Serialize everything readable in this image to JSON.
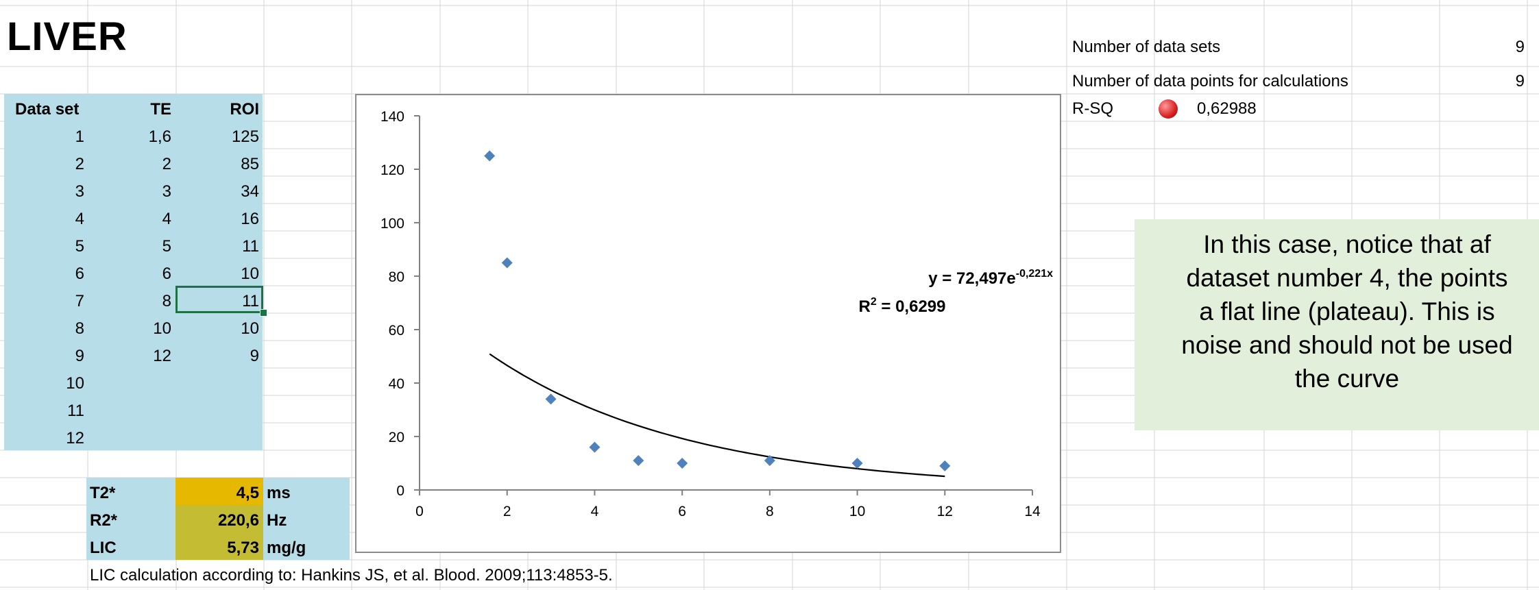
{
  "sheet": {
    "title": "LIVER"
  },
  "table": {
    "headers": {
      "set": "Data set",
      "te": "TE",
      "roi": "ROI"
    },
    "rows": [
      {
        "set": "1",
        "te": "1,6",
        "roi": "125"
      },
      {
        "set": "2",
        "te": "2",
        "roi": "85"
      },
      {
        "set": "3",
        "te": "3",
        "roi": "34"
      },
      {
        "set": "4",
        "te": "4",
        "roi": "16"
      },
      {
        "set": "5",
        "te": "5",
        "roi": "11"
      },
      {
        "set": "6",
        "te": "6",
        "roi": "10"
      },
      {
        "set": "7",
        "te": "8",
        "roi": "11"
      },
      {
        "set": "8",
        "te": "10",
        "roi": "10"
      },
      {
        "set": "9",
        "te": "12",
        "roi": "9"
      },
      {
        "set": "10",
        "te": "",
        "roi": ""
      },
      {
        "set": "11",
        "te": "",
        "roi": ""
      },
      {
        "set": "12",
        "te": "",
        "roi": ""
      }
    ]
  },
  "results": {
    "t2": {
      "label": "T2*",
      "value": "4,5",
      "unit": "ms"
    },
    "r2": {
      "label": "R2*",
      "value": "220,6",
      "unit": "Hz"
    },
    "lic": {
      "label": "LIC",
      "value": "5,73",
      "unit": "mg/g"
    }
  },
  "reference": "LIC calculation according to: Hankins JS, et al. Blood. 2009;113:4853-5.",
  "stats": {
    "datasets_label": "Number of data sets",
    "datasets_value": "9",
    "points_label": "Number of data points for calculations",
    "points_value": "9",
    "rsq_label": "R-SQ",
    "rsq_value": "0,62988"
  },
  "note": {
    "lines": [
      "In this case, notice that af",
      "dataset number 4, the points",
      "a flat line (plateau). This is",
      "noise and should not be used",
      "the curve"
    ]
  },
  "colors": {
    "marker": "#4f81bd",
    "table_fill": "#b7dde8",
    "t2_fill": "#e6b800",
    "result_fill": "#c4bd33",
    "note_fill": "#e2efda",
    "status": "#d82020"
  },
  "chart_data": {
    "type": "scatter",
    "x": [
      1.6,
      2,
      3,
      4,
      5,
      6,
      8,
      10,
      12
    ],
    "y": [
      125,
      85,
      34,
      16,
      11,
      10,
      11,
      10,
      9
    ],
    "xlim": [
      0,
      14
    ],
    "ylim": [
      0,
      140
    ],
    "xticks": [
      "0",
      "2",
      "4",
      "6",
      "8",
      "10",
      "12",
      "14"
    ],
    "yticks": [
      "0",
      "20",
      "40",
      "60",
      "80",
      "100",
      "120",
      "140"
    ],
    "trendline": {
      "type": "exponential",
      "a": 72.497,
      "b": -0.221,
      "x_range": [
        1.6,
        12
      ]
    },
    "equation": {
      "prefix": "y = 72,497e",
      "exponent": "-0,221x",
      "r2_label": "R",
      "r2_sup": "2",
      "r2_value": " = 0,6299"
    }
  }
}
